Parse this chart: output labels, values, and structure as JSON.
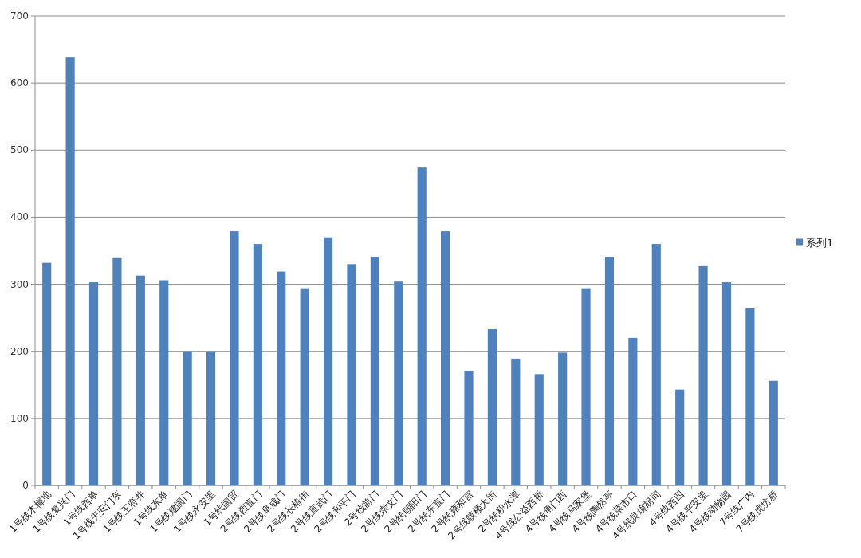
{
  "chart_data": {
    "type": "bar",
    "categories": [
      "1号线木樨地",
      "1号线复兴门",
      "1号线西单",
      "1号线天安门东",
      "1号线王府井",
      "1号线东单",
      "1号线建国门",
      "1号线永安里",
      "1号线国贸",
      "2号线西直门",
      "2号线阜成门",
      "2号线长椿街",
      "2号线宣武门",
      "2号线和平门",
      "2号线前门",
      "2号线崇文门",
      "2号线朝阳门",
      "2号线东直门",
      "2号线雍和宫",
      "2号线鼓楼大街",
      "2号线积水潭",
      "4号线公益西桥",
      "4号线角门西",
      "4号线马家堡",
      "4号线陶然亭",
      "4号线菜市口",
      "4号线灵境胡同",
      "4号线西四",
      "4号线平安里",
      "4号线动物园",
      "7号线广内",
      "7号线虎坊桥"
    ],
    "series": [
      {
        "name": "系列1",
        "color": "#4f81bd",
        "values": [
          332,
          638,
          303,
          339,
          313,
          306,
          200,
          200,
          379,
          360,
          319,
          294,
          370,
          330,
          341,
          304,
          474,
          379,
          171,
          233,
          189,
          166,
          198,
          294,
          341,
          220,
          360,
          143,
          327,
          303,
          264,
          156
        ]
      }
    ],
    "ylim": [
      0,
      700
    ],
    "yticks": [
      0,
      100,
      200,
      300,
      400,
      500,
      600,
      700
    ],
    "grid": "y",
    "legend": "right"
  }
}
